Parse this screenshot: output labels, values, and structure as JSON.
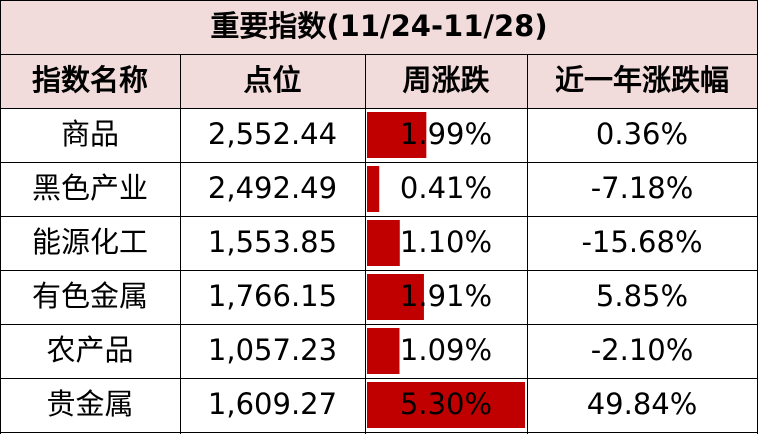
{
  "table": {
    "title": "重要指数(11/24-11/28)",
    "header": [
      "指数名称",
      "点位",
      "周涨跌",
      "近一年涨跌幅"
    ],
    "rows": [
      [
        "商品",
        "2,552.44",
        {
          "value": 1.99,
          "label": "1.99%"
        },
        "0.36%"
      ],
      [
        "黑色产业",
        "2,492.49",
        {
          "value": 0.41,
          "label": "0.41%"
        },
        "-7.18%"
      ],
      [
        "能源化工",
        "1,553.85",
        {
          "value": 1.1,
          "label": "1.10%"
        },
        "-15.68%"
      ],
      [
        "有色金属",
        "1,766.15",
        {
          "value": 1.91,
          "label": "1.91%"
        },
        "5.85%"
      ],
      [
        "农产品",
        "1,057.23",
        {
          "value": 1.09,
          "label": "1.09%"
        },
        "-2.10%"
      ],
      [
        "贵金属",
        "1,609.27",
        {
          "value": 5.3,
          "label": "5.30%"
        },
        "49.84%"
      ]
    ],
    "bar_color": "#c00000"
  }
}
